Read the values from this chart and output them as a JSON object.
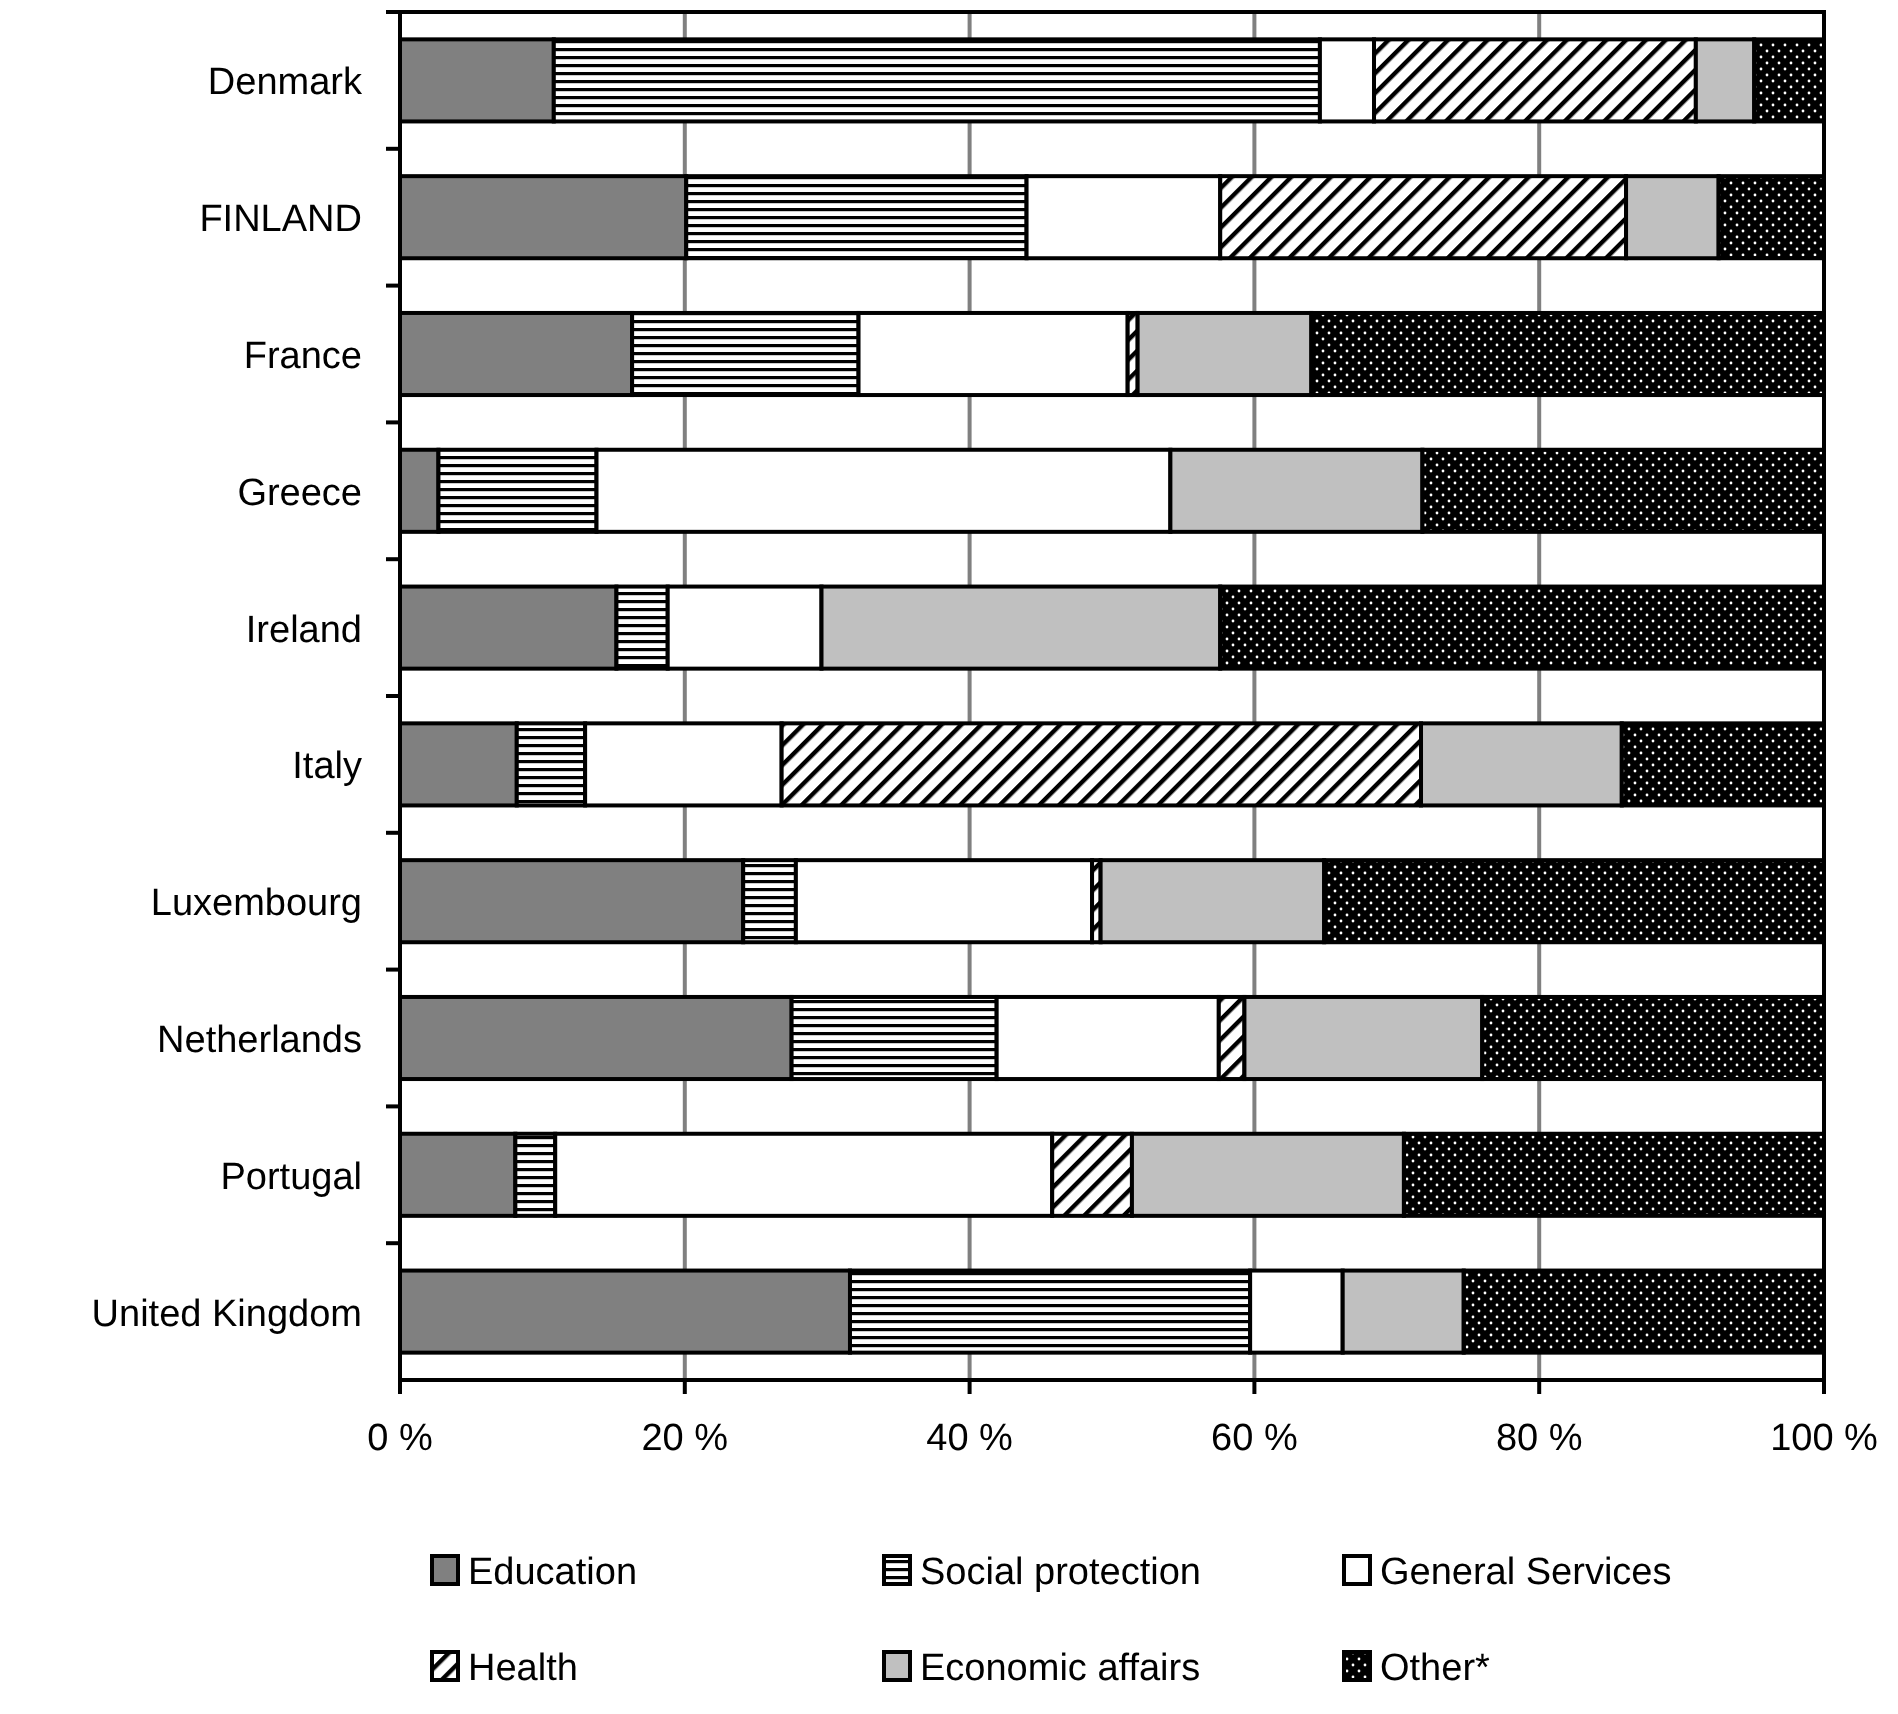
{
  "chart_data": {
    "type": "bar",
    "orientation": "horizontal",
    "stacked": true,
    "categories": [
      "Denmark",
      "FINLAND",
      "France",
      "Greece",
      "Ireland",
      "Italy",
      "Luxembourg",
      "Netherlands",
      "Portugal",
      "United Kingdom"
    ],
    "series": [
      {
        "name": "Education",
        "color": "#808080",
        "values": [
          10.8,
          20.1,
          16.3,
          2.7,
          15.2,
          8.2,
          24.1,
          27.5,
          8.1,
          31.6
        ]
      },
      {
        "name": "Social protection",
        "color": "#000000",
        "values": [
          53.8,
          23.9,
          15.9,
          11.1,
          3.6,
          4.8,
          3.7,
          14.4,
          2.8,
          28.1
        ]
      },
      {
        "name": "General Services",
        "color": "#ffffff",
        "values": [
          3.8,
          13.6,
          18.9,
          40.3,
          10.8,
          13.8,
          20.8,
          15.6,
          34.9,
          6.5
        ]
      },
      {
        "name": "Health",
        "color": "#000000",
        "values": [
          22.6,
          28.5,
          0.7,
          0,
          0,
          44.9,
          0.6,
          1.8,
          5.6,
          0
        ]
      },
      {
        "name": "Economic affairs",
        "color": "#c0c0c0",
        "values": [
          4.1,
          6.5,
          12.2,
          17.7,
          28.0,
          14.1,
          15.7,
          16.7,
          19.1,
          8.5
        ]
      },
      {
        "name": "Other*",
        "color": "#000000",
        "values": [
          4.9,
          7.4,
          36.0,
          28.2,
          42.4,
          14.2,
          35.1,
          24.0,
          29.5,
          25.3
        ]
      }
    ],
    "xlim": [
      0,
      100
    ],
    "xticks": [
      {
        "value": 0,
        "label": "0 %"
      },
      {
        "value": 20,
        "label": "20 %"
      },
      {
        "value": 40,
        "label": "40 %"
      },
      {
        "value": 60,
        "label": "60 %"
      },
      {
        "value": 80,
        "label": "80 %"
      },
      {
        "value": 100,
        "label": "100 %"
      }
    ],
    "grid": "x",
    "legend": "bottom"
  }
}
